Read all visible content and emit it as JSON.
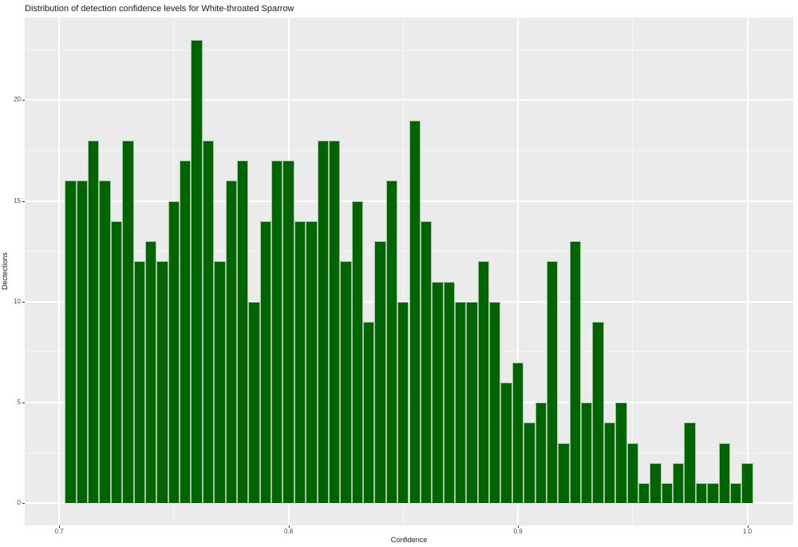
{
  "chart_data": {
    "type": "bar",
    "chart_kind": "histogram",
    "title": "Distribution of detection confidence levels for White-throated Sparrow",
    "xlabel": "Confidence",
    "ylabel": "Dectections",
    "bin_width": 0.005,
    "bin_centers": [
      0.705,
      0.71,
      0.715,
      0.72,
      0.725,
      0.73,
      0.735,
      0.74,
      0.745,
      0.75,
      0.755,
      0.76,
      0.765,
      0.77,
      0.775,
      0.78,
      0.785,
      0.79,
      0.795,
      0.8,
      0.805,
      0.81,
      0.815,
      0.82,
      0.825,
      0.83,
      0.835,
      0.84,
      0.845,
      0.85,
      0.855,
      0.86,
      0.865,
      0.87,
      0.875,
      0.88,
      0.885,
      0.89,
      0.895,
      0.9,
      0.905,
      0.91,
      0.915,
      0.92,
      0.925,
      0.93,
      0.935,
      0.94,
      0.945,
      0.95,
      0.955,
      0.96,
      0.965,
      0.97,
      0.975,
      0.98,
      0.985,
      0.99,
      0.995,
      1.0
    ],
    "values": [
      16,
      16,
      18,
      16,
      14,
      18,
      12,
      13,
      12,
      15,
      17,
      23,
      18,
      12,
      16,
      17,
      10,
      14,
      17,
      17,
      14,
      14,
      18,
      18,
      12,
      15,
      9,
      13,
      16,
      10,
      19,
      14,
      11,
      11,
      10,
      10,
      12,
      10,
      6,
      7,
      4,
      5,
      12,
      3,
      13,
      5,
      9,
      4,
      5,
      3,
      1,
      2,
      1,
      2,
      4,
      1,
      1,
      3,
      1,
      2
    ],
    "x_ticks": {
      "values": [
        0.7,
        0.8,
        0.9,
        1.0
      ],
      "labels": [
        "0.7",
        "0.8",
        "0.9",
        "1.0"
      ]
    },
    "y_ticks": {
      "values": [
        0,
        5,
        10,
        15,
        20
      ],
      "labels": [
        "0",
        "5",
        "10",
        "15",
        "20"
      ]
    },
    "x_minor": [
      0.75,
      0.85,
      0.95
    ],
    "y_minor": [
      2.5,
      7.5,
      12.5,
      17.5,
      22.5
    ],
    "xlim": [
      0.685,
      1.02
    ],
    "ylim": [
      -1.1,
      24.1
    ],
    "grid": true,
    "legend": false,
    "colors": {
      "bar_fill": "#006400",
      "bar_border": "#a6c3a6",
      "panel_bg": "#ebebeb",
      "grid_major": "#ffffff",
      "grid_minor": "#ffffff",
      "tick_text": "#4d4d4d",
      "axis_title_text": "#1a1a1a",
      "title_text": "#1a1a1a",
      "tick_mark": "#333333"
    }
  }
}
